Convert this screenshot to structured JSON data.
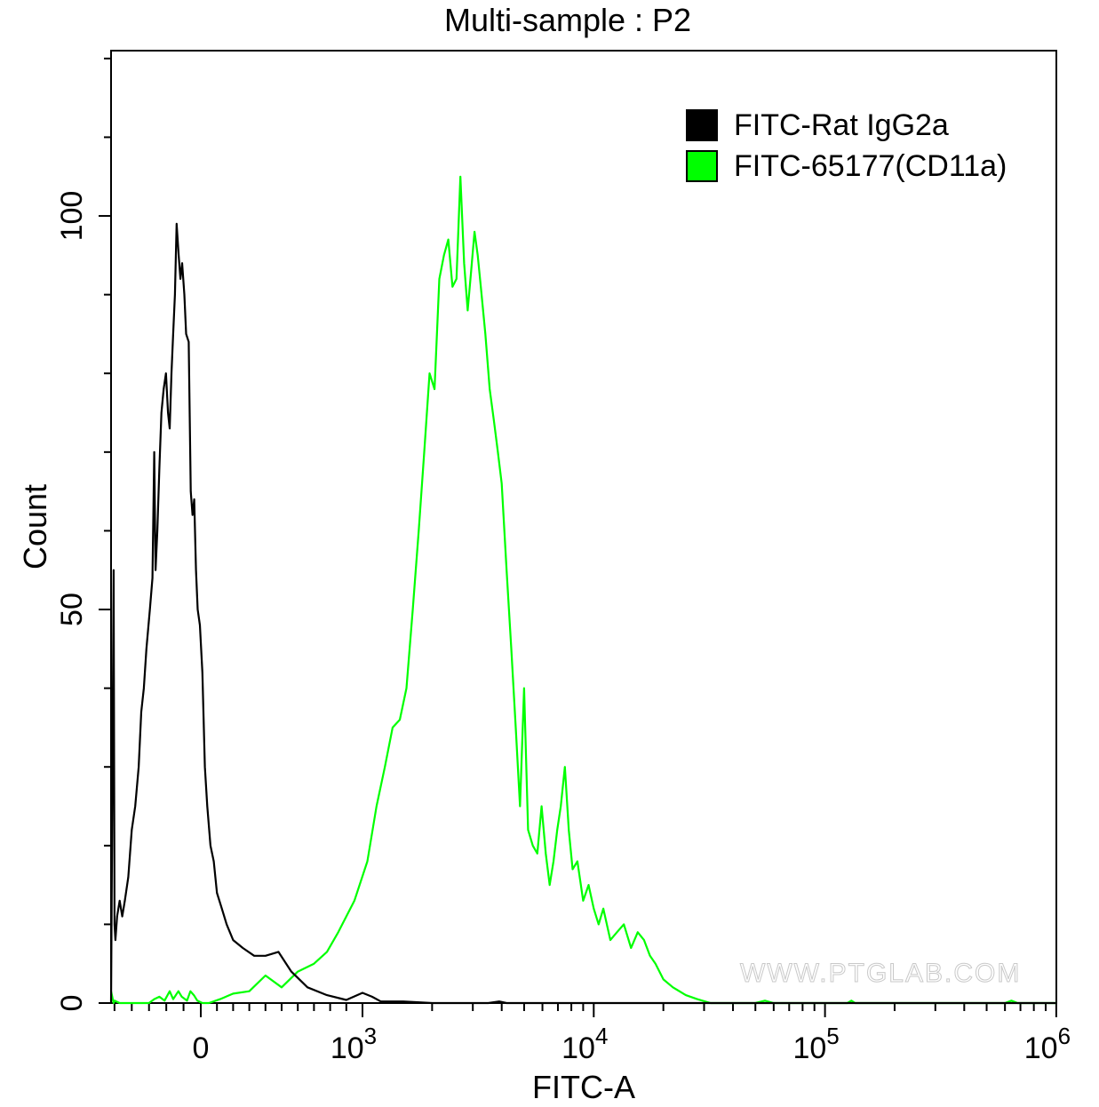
{
  "chart_data": {
    "type": "line",
    "title": "Multi-sample : P2",
    "xlabel": "FITC-A",
    "ylabel": "Count",
    "x_scale": "biexponential",
    "xlim": [
      -520,
      1000000
    ],
    "ylim": [
      0,
      121
    ],
    "x_ticks": [
      {
        "value": 0,
        "label": "0"
      },
      {
        "value": 1000,
        "label": "10",
        "exp": "3"
      },
      {
        "value": 10000,
        "label": "10",
        "exp": "4"
      },
      {
        "value": 100000,
        "label": "10",
        "exp": "5"
      },
      {
        "value": 1000000,
        "label": "10",
        "exp": "6"
      }
    ],
    "y_ticks": [
      {
        "value": 0,
        "label": "0"
      },
      {
        "value": 50,
        "label": "50"
      },
      {
        "value": 100,
        "label": "100"
      }
    ],
    "legend_position": "top-right",
    "series": [
      {
        "name": "FITC-Rat IgG2a",
        "color": "#000000",
        "points": [
          [
            -520,
            0
          ],
          [
            -505,
            55
          ],
          [
            -500,
            10
          ],
          [
            -495,
            8
          ],
          [
            -485,
            11
          ],
          [
            -470,
            13
          ],
          [
            -455,
            11
          ],
          [
            -440,
            13
          ],
          [
            -420,
            16
          ],
          [
            -400,
            22
          ],
          [
            -380,
            25
          ],
          [
            -360,
            30
          ],
          [
            -345,
            37
          ],
          [
            -330,
            40
          ],
          [
            -315,
            45
          ],
          [
            -295,
            50
          ],
          [
            -280,
            54
          ],
          [
            -270,
            70
          ],
          [
            -262,
            55
          ],
          [
            -252,
            60
          ],
          [
            -240,
            68
          ],
          [
            -228,
            75
          ],
          [
            -215,
            78
          ],
          [
            -202,
            80
          ],
          [
            -190,
            75
          ],
          [
            -180,
            73
          ],
          [
            -170,
            80
          ],
          [
            -160,
            85
          ],
          [
            -150,
            90
          ],
          [
            -140,
            99
          ],
          [
            -128,
            95
          ],
          [
            -118,
            92
          ],
          [
            -108,
            94
          ],
          [
            -95,
            90
          ],
          [
            -85,
            85
          ],
          [
            -70,
            84
          ],
          [
            -58,
            65
          ],
          [
            -48,
            62
          ],
          [
            -38,
            64
          ],
          [
            -28,
            55
          ],
          [
            -18,
            50
          ],
          [
            -5,
            48
          ],
          [
            10,
            42
          ],
          [
            25,
            30
          ],
          [
            40,
            25
          ],
          [
            60,
            20
          ],
          [
            80,
            18
          ],
          [
            100,
            14
          ],
          [
            130,
            12
          ],
          [
            160,
            10
          ],
          [
            200,
            8
          ],
          [
            260,
            7
          ],
          [
            330,
            6
          ],
          [
            400,
            6
          ],
          [
            480,
            6.5
          ],
          [
            560,
            4
          ],
          [
            660,
            2
          ],
          [
            780,
            1
          ],
          [
            900,
            0.4
          ],
          [
            1000,
            1.3
          ],
          [
            1100,
            0.8
          ],
          [
            1200,
            0.2
          ],
          [
            1500,
            0.2
          ],
          [
            2000,
            0
          ],
          [
            3500,
            0
          ],
          [
            3900,
            0.2
          ],
          [
            4200,
            0
          ],
          [
            1000000,
            0
          ]
        ]
      },
      {
        "name": "FITC-65177(CD11a)",
        "color": "#00ff00",
        "points": [
          [
            -520,
            1.5
          ],
          [
            -505,
            0
          ],
          [
            -500,
            0.3
          ],
          [
            -470,
            0
          ],
          [
            -380,
            0
          ],
          [
            -300,
            0
          ],
          [
            -270,
            0.5
          ],
          [
            -240,
            0.8
          ],
          [
            -210,
            0.3
          ],
          [
            -180,
            1.5
          ],
          [
            -160,
            0.5
          ],
          [
            -130,
            1.5
          ],
          [
            -110,
            0.8
          ],
          [
            -80,
            0.3
          ],
          [
            -60,
            1.5
          ],
          [
            -40,
            1.0
          ],
          [
            -20,
            0.3
          ],
          [
            10,
            0
          ],
          [
            50,
            0
          ],
          [
            120,
            0.5
          ],
          [
            200,
            1.2
          ],
          [
            300,
            1.5
          ],
          [
            400,
            3.5
          ],
          [
            500,
            2
          ],
          [
            600,
            4
          ],
          [
            700,
            5
          ],
          [
            780,
            6.5
          ],
          [
            850,
            9
          ],
          [
            950,
            13
          ],
          [
            1050,
            18
          ],
          [
            1150,
            25
          ],
          [
            1250,
            30
          ],
          [
            1350,
            35
          ],
          [
            1450,
            36
          ],
          [
            1550,
            40
          ],
          [
            1650,
            50
          ],
          [
            1750,
            60
          ],
          [
            1850,
            70
          ],
          [
            1950,
            80
          ],
          [
            2050,
            78
          ],
          [
            2150,
            92
          ],
          [
            2250,
            95
          ],
          [
            2350,
            97
          ],
          [
            2450,
            91
          ],
          [
            2550,
            92
          ],
          [
            2650,
            105
          ],
          [
            2750,
            94
          ],
          [
            2850,
            88
          ],
          [
            2950,
            93
          ],
          [
            3050,
            98
          ],
          [
            3150,
            95
          ],
          [
            3250,
            91
          ],
          [
            3400,
            85
          ],
          [
            3550,
            78
          ],
          [
            3700,
            74
          ],
          [
            3850,
            70
          ],
          [
            4000,
            66
          ],
          [
            4200,
            55
          ],
          [
            4400,
            45
          ],
          [
            4600,
            35
          ],
          [
            4800,
            25
          ],
          [
            5000,
            40
          ],
          [
            5200,
            22
          ],
          [
            5450,
            20
          ],
          [
            5700,
            19
          ],
          [
            5950,
            25
          ],
          [
            6200,
            19
          ],
          [
            6450,
            15
          ],
          [
            6700,
            18
          ],
          [
            6950,
            22
          ],
          [
            7200,
            25
          ],
          [
            7500,
            30
          ],
          [
            7800,
            22
          ],
          [
            8100,
            17
          ],
          [
            8500,
            18
          ],
          [
            9000,
            13
          ],
          [
            9500,
            15
          ],
          [
            10000,
            12
          ],
          [
            10500,
            10
          ],
          [
            11000,
            12
          ],
          [
            11800,
            8
          ],
          [
            12600,
            9
          ],
          [
            13500,
            10
          ],
          [
            14500,
            7
          ],
          [
            15500,
            9
          ],
          [
            16500,
            8
          ],
          [
            17500,
            6
          ],
          [
            18500,
            5
          ],
          [
            20000,
            3
          ],
          [
            22000,
            2
          ],
          [
            25000,
            1
          ],
          [
            28000,
            0.5
          ],
          [
            32000,
            0
          ],
          [
            50000,
            0
          ],
          [
            55000,
            0.3
          ],
          [
            60000,
            0
          ],
          [
            125000,
            0
          ],
          [
            130000,
            0.3
          ],
          [
            135000,
            0
          ],
          [
            600000,
            0
          ],
          [
            640000,
            0.3
          ],
          [
            680000,
            0
          ],
          [
            1000000,
            0
          ]
        ]
      }
    ],
    "watermark": "WWW.PTGLAB.COM"
  }
}
